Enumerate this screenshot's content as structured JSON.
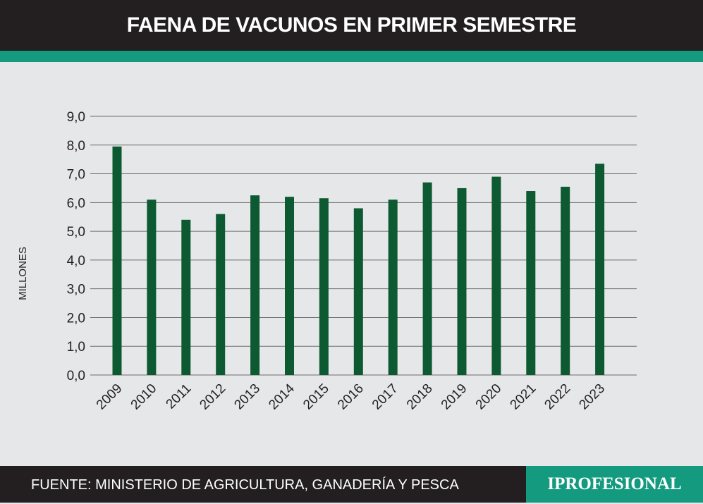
{
  "header": {
    "title": "FAENA DE VACUNOS EN PRIMER SEMESTRE"
  },
  "footer": {
    "source": "FUENTE: MINISTERIO DE AGRICULTURA, GANADERÍA Y PESCA",
    "brand": "IPROFESIONAL"
  },
  "colors": {
    "header_bg": "#231f20",
    "accent": "#139a7f",
    "background": "#e6e7e8",
    "bar": "#0d5a32",
    "brand_bg": "#139a7f"
  },
  "chart_data": {
    "type": "bar",
    "title": "",
    "xlabel": "",
    "ylabel": "MILLONES",
    "categories": [
      "2009",
      "2010",
      "2011",
      "2012",
      "2013",
      "2014",
      "2015",
      "2016",
      "2017",
      "2018",
      "2019",
      "2020",
      "2021",
      "2022",
      "2023"
    ],
    "values": [
      7.95,
      6.1,
      5.4,
      5.6,
      6.25,
      6.2,
      6.15,
      5.8,
      6.1,
      6.7,
      6.5,
      6.9,
      6.4,
      6.55,
      7.35
    ],
    "ylim": [
      0,
      9
    ],
    "yticks": [
      "0,0",
      "1,0",
      "2,0",
      "3,0",
      "4,0",
      "5,0",
      "6,0",
      "7,0",
      "8,0",
      "9,0"
    ],
    "grid": true,
    "legend": "none"
  }
}
